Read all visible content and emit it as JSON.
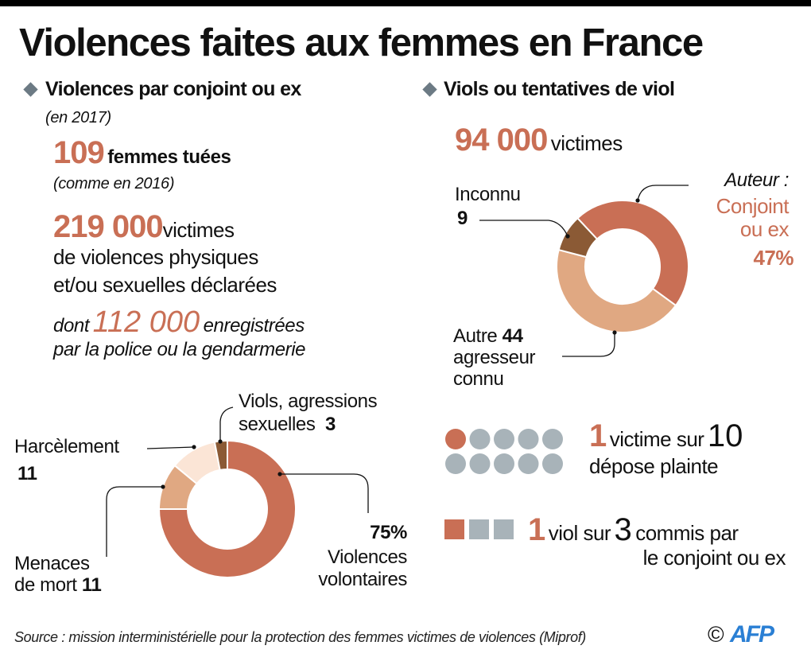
{
  "title": "Violences faites aux femmes en France",
  "left_section": {
    "heading": "Violences par conjoint ou ex",
    "year": "(en 2017)",
    "killed_number": "109",
    "killed_label": "femmes tuées",
    "killed_note": "(comme en 2016)",
    "victims_number": "219 000",
    "victims_label": "victimes",
    "victims_line2": "de violences physiques",
    "victims_line3": "et/ou sexuelles déclarées",
    "registered_prefix": "dont",
    "registered_number": "112 000",
    "registered_suffix": "enregistrées",
    "registered_line2": "par la police  ou la gendarmerie"
  },
  "right_section": {
    "heading": "Viols ou tentatives de viol",
    "victims_number": "94 000",
    "victims_label": "victimes",
    "complaint": {
      "num": "1",
      "text": "victime sur",
      "den": "10",
      "line2": "dépose plainte",
      "filled": 1,
      "total": 10
    },
    "rape": {
      "num": "1",
      "text": "viol sur",
      "den": "3",
      "text2": "commis par",
      "line2": "le conjoint ou ex",
      "filled": 1,
      "total": 3
    }
  },
  "colors": {
    "main": "#c96f55",
    "light": "#e0a882",
    "pale": "#fbe5d6",
    "dark": "#8b5a35",
    "grey": "#a8b3b9",
    "diamond": "#6c7a84",
    "afp": "#2a7fd4"
  },
  "chart_data": [
    {
      "type": "pie",
      "donut": true,
      "unit": "%",
      "slices": [
        {
          "label": "Violences volontaires",
          "value": 75,
          "value_label": "75%",
          "color": "#c96f55"
        },
        {
          "label": "Menaces de mort",
          "value": 11,
          "value_label": "11",
          "color": "#e0a882"
        },
        {
          "label": "Harcèlement",
          "value": 11,
          "value_label": "11",
          "color": "#fbe5d6"
        },
        {
          "label": "Viols, agressions sexuelles",
          "value": 3,
          "value_label": "3",
          "color": "#8b5a35"
        }
      ],
      "labels": {
        "viols_l1": "Viols, agressions",
        "viols_l2": "sexuelles",
        "harc": "Harcèlement",
        "menaces_l1": "Menaces",
        "menaces_l2": "de mort",
        "viol_l1": "Violences",
        "viol_l2": "volontaires"
      }
    },
    {
      "type": "pie",
      "donut": true,
      "unit": "%",
      "slices": [
        {
          "label": "Auteur : Conjoint ou ex",
          "value": 47,
          "value_label": "47%",
          "color": "#c96f55"
        },
        {
          "label": "Autre agresseur connu",
          "value": 44,
          "value_label": "44",
          "color": "#e0a882"
        },
        {
          "label": "Inconnu",
          "value": 9,
          "value_label": "9",
          "color": "#8b5a35"
        }
      ],
      "labels": {
        "auteur": "Auteur :",
        "conj_l1": "Conjoint",
        "conj_l2": "ou ex",
        "autre_l1": "Autre",
        "autre_l2": "agresseur",
        "autre_l3": "connu",
        "inconnu": "Inconnu"
      }
    }
  ],
  "source": "Source : mission interministérielle pour la protection des femmes victimes de violences (Miprof)",
  "copyright": "©",
  "logo": "AFP"
}
